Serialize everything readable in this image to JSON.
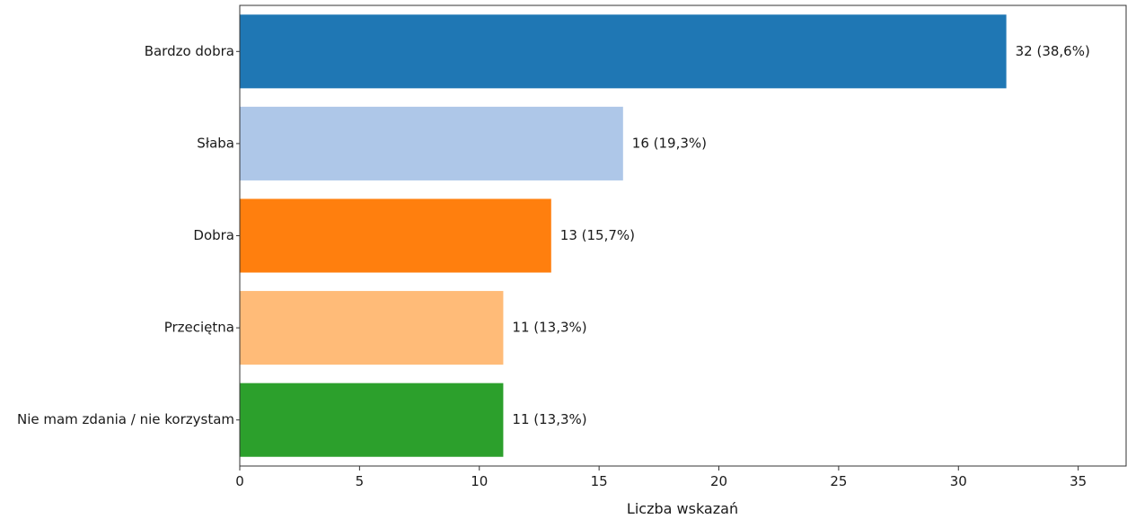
{
  "chart_data": {
    "type": "bar",
    "orientation": "horizontal",
    "title": "",
    "xlabel": "Liczba wskazań",
    "ylabel": "",
    "xlim": [
      0,
      37
    ],
    "x_ticks": [
      0,
      5,
      10,
      15,
      20,
      25,
      30,
      35
    ],
    "grid": false,
    "categories": [
      "Bardzo dobra",
      "Słaba",
      "Dobra",
      "Przeciętna",
      "Nie mam zdania / nie korzystam"
    ],
    "values": [
      32,
      16,
      13,
      11,
      11
    ],
    "value_labels": [
      "32 (38,6%)",
      "16 (19,3%)",
      "13 (15,7%)",
      "11 (13,3%)",
      "11 (13,3%)"
    ],
    "colors": [
      "#1f77b4",
      "#aec7e8",
      "#ff7f0e",
      "#ffbb78",
      "#2ca02c"
    ]
  }
}
